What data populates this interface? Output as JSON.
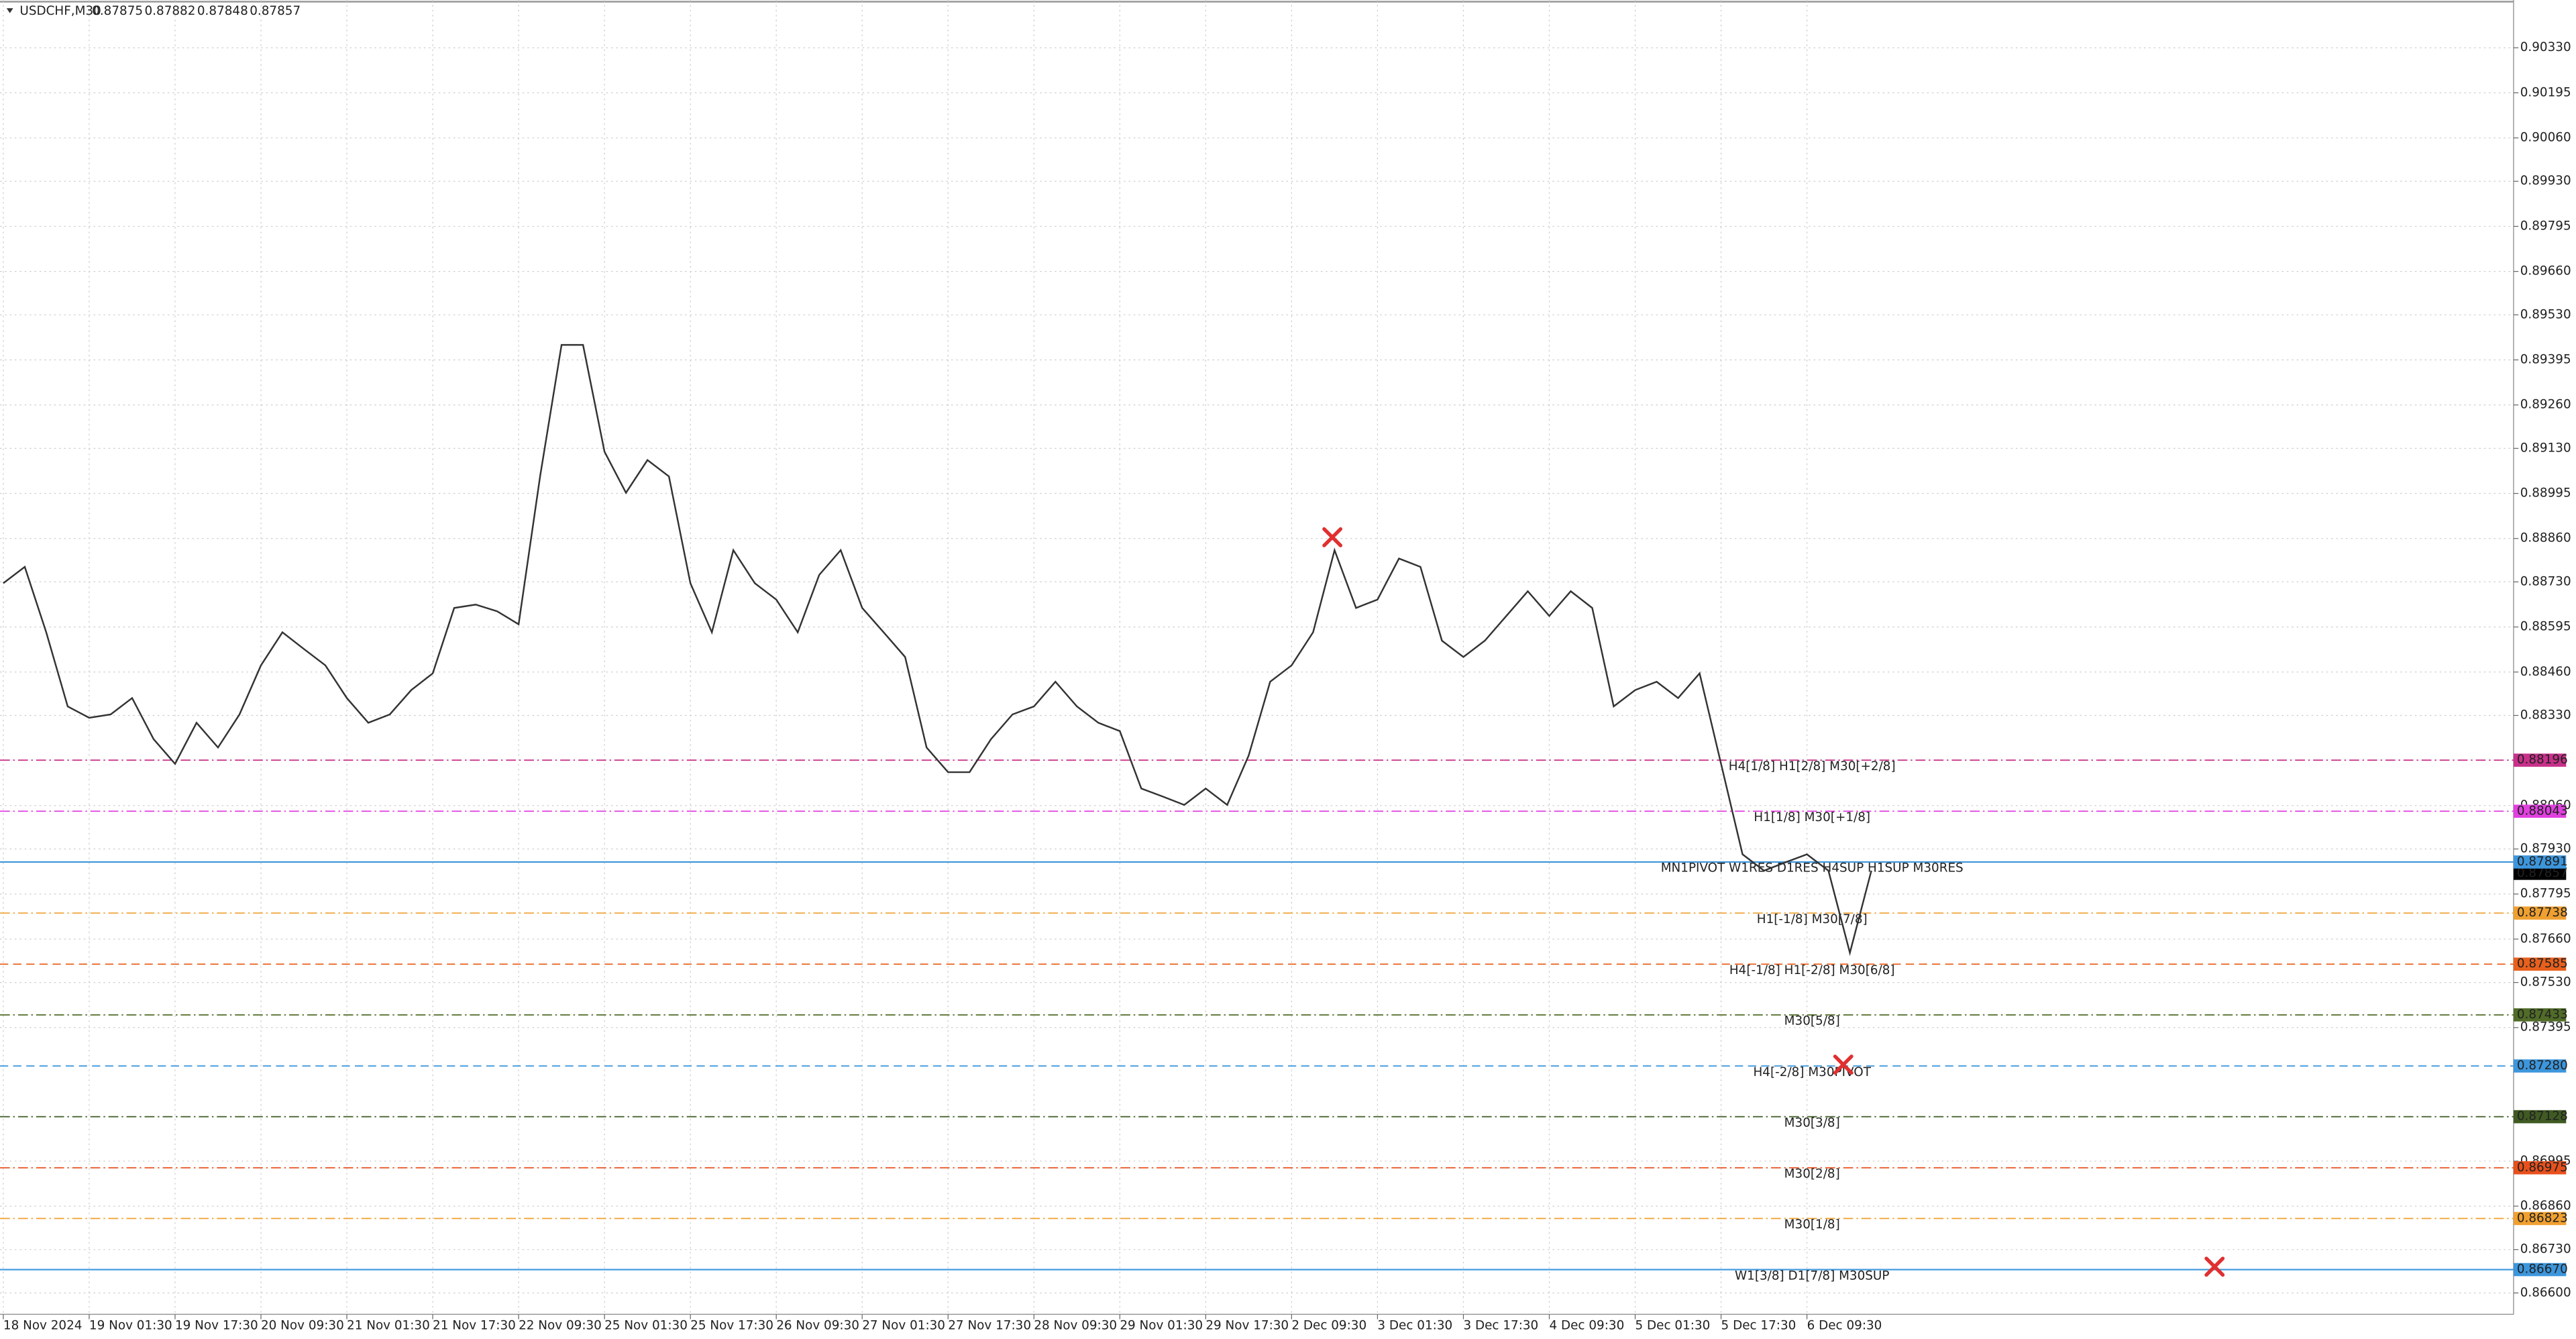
{
  "chart_data": {
    "type": "line",
    "symbol": "USDCHF,M30",
    "ohlc": [
      "0.87875",
      "0.87882",
      "0.87848",
      "0.87857"
    ],
    "categories": [
      "18 Nov 2024",
      null,
      null,
      null,
      "19 Nov 01:30",
      null,
      null,
      null,
      "19 Nov 17:30",
      null,
      null,
      null,
      "20 Nov 09:30",
      null,
      null,
      null,
      "21 Nov 01:30",
      null,
      null,
      null,
      "21 Nov 17:30",
      null,
      null,
      null,
      "22 Nov 09:30",
      null,
      null,
      null,
      "25 Nov 01:30",
      null,
      null,
      null,
      "25 Nov 17:30",
      null,
      null,
      null,
      "26 Nov 09:30",
      null,
      null,
      null,
      "27 Nov 01:30",
      null,
      null,
      null,
      "27 Nov 17:30",
      null,
      null,
      null,
      "28 Nov 09:30",
      null,
      null,
      null,
      "29 Nov 01:30",
      null,
      null,
      null,
      "29 Nov 17:30",
      null,
      null,
      null,
      "2 Dec 09:30",
      null,
      null,
      null,
      "3 Dec 01:30",
      null,
      null,
      null,
      "3 Dec 17:30",
      null,
      null,
      null,
      "4 Dec 09:30",
      null,
      null,
      null,
      "5 Dec 01:30",
      null,
      null,
      null,
      "5 Dec 17:30",
      null,
      null,
      null,
      "6 Dec 09:30",
      null,
      null,
      null
    ],
    "series": [
      {
        "name": "USDCHF",
        "color": "#333333",
        "values": [
          0.88726,
          0.88775,
          0.88579,
          0.88357,
          0.88323,
          0.88333,
          0.88382,
          0.88259,
          0.88185,
          0.88308,
          0.88234,
          0.88333,
          0.8848,
          0.88579,
          0.88529,
          0.8848,
          0.88382,
          0.88308,
          0.88333,
          0.88406,
          0.88456,
          0.88652,
          0.88662,
          0.88642,
          0.88603,
          0.89046,
          0.8944,
          0.8944,
          0.8912,
          0.88997,
          0.89095,
          0.89046,
          0.88726,
          0.88579,
          0.88825,
          0.88726,
          0.88677,
          0.88579,
          0.88751,
          0.88825,
          0.88652,
          0.88579,
          0.88505,
          0.88234,
          0.8816,
          0.8816,
          0.88259,
          0.88333,
          0.88357,
          0.88431,
          0.88357,
          0.88308,
          0.88283,
          0.88111,
          0.88087,
          0.88062,
          0.88111,
          0.88062,
          0.8821,
          0.88431,
          0.8848,
          0.88579,
          0.88825,
          0.88652,
          0.88677,
          0.888,
          0.88775,
          0.88554,
          0.88505,
          0.88554,
          0.88628,
          0.88702,
          0.88628,
          0.88702,
          0.88652,
          0.88357,
          0.88406,
          0.88431,
          0.88382,
          0.88456,
          0.88185,
          0.87914,
          0.87865,
          0.8789,
          0.87914,
          0.87865,
          0.87619,
          0.87865
        ]
      }
    ],
    "ylim": [
      0.86536,
      0.90473
    ],
    "yticks": [
      {
        "value": 0.9033,
        "label": "0.90330"
      },
      {
        "value": 0.90195,
        "label": "0.90195"
      },
      {
        "value": 0.9006,
        "label": "0.90060"
      },
      {
        "value": 0.8993,
        "label": "0.89930"
      },
      {
        "value": 0.89795,
        "label": "0.89795"
      },
      {
        "value": 0.8966,
        "label": "0.89660"
      },
      {
        "value": 0.8953,
        "label": "0.89530"
      },
      {
        "value": 0.89395,
        "label": "0.89395"
      },
      {
        "value": 0.8926,
        "label": "0.89260"
      },
      {
        "value": 0.8913,
        "label": "0.89130"
      },
      {
        "value": 0.88995,
        "label": "0.88995"
      },
      {
        "value": 0.8886,
        "label": "0.88860"
      },
      {
        "value": 0.8873,
        "label": "0.88730"
      },
      {
        "value": 0.88595,
        "label": "0.88595"
      },
      {
        "value": 0.8846,
        "label": "0.88460"
      },
      {
        "value": 0.8833,
        "label": "0.88330"
      },
      {
        "value": 0.8806,
        "label": "0.88060"
      },
      {
        "value": 0.8793,
        "label": "0.87930"
      },
      {
        "value": 0.87795,
        "label": "0.87795"
      },
      {
        "value": 0.8766,
        "label": "0.87660"
      },
      {
        "value": 0.8753,
        "label": "0.87530"
      },
      {
        "value": 0.87395,
        "label": "0.87395"
      },
      {
        "value": 0.86995,
        "label": "0.86995"
      },
      {
        "value": 0.8686,
        "label": "0.86860"
      },
      {
        "value": 0.8673,
        "label": "0.86730"
      },
      {
        "value": 0.866,
        "label": "0.86600"
      }
    ],
    "grid": true,
    "levels": [
      {
        "name": "H4[1/8] H1[2/8] M30[+2/8]",
        "price": 0.88196,
        "price_label": "0.88196",
        "color": "#c8308a",
        "style": "dashdot"
      },
      {
        "name": "H1[1/8] M30[+1/8]",
        "price": 0.88043,
        "price_label": "0.88043",
        "color": "#e040e0",
        "style": "dashdot"
      },
      {
        "name": "MN1PIVOT W1RES D1RES H4SUP H1SUP M30RES",
        "price": 0.87891,
        "price_label": "0.87891",
        "color": "#3c96dc",
        "style": "solid"
      },
      {
        "name": "H1[-1/8] M30[7/8]",
        "price": 0.87738,
        "price_label": "0.87738",
        "color": "#f0a030",
        "style": "dashdot"
      },
      {
        "name": "H4[-1/8] H1[-2/8] M30[6/8]",
        "price": 0.87585,
        "price_label": "0.87585",
        "color": "#e8601c",
        "style": "dashed"
      },
      {
        "name": "M30[5/8]",
        "price": 0.87433,
        "price_label": "0.87433",
        "color": "#506c28",
        "style": "dashdot"
      },
      {
        "name": "H4[-2/8] M30PIVOT",
        "price": 0.8728,
        "price_label": "0.87280",
        "color": "#3c96dc",
        "style": "dashed"
      },
      {
        "name": "M30[3/8]",
        "price": 0.87128,
        "price_label": "0.87128",
        "color": "#3f5a22",
        "style": "dashdot"
      },
      {
        "name": "M30[2/8]",
        "price": 0.86975,
        "price_label": "0.86975",
        "color": "#e8501c",
        "style": "dashdot"
      },
      {
        "name": "M30[1/8]",
        "price": 0.86823,
        "price_label": "0.86823",
        "color": "#f0a030",
        "style": "dashdot"
      },
      {
        "name": "W1[3/8] D1[7/8] M30SUP",
        "price": 0.8667,
        "price_label": "0.86670",
        "color": "#3c96dc",
        "style": "solid"
      }
    ],
    "current_price": 0.87857,
    "current_price_label": "0.87857"
  }
}
